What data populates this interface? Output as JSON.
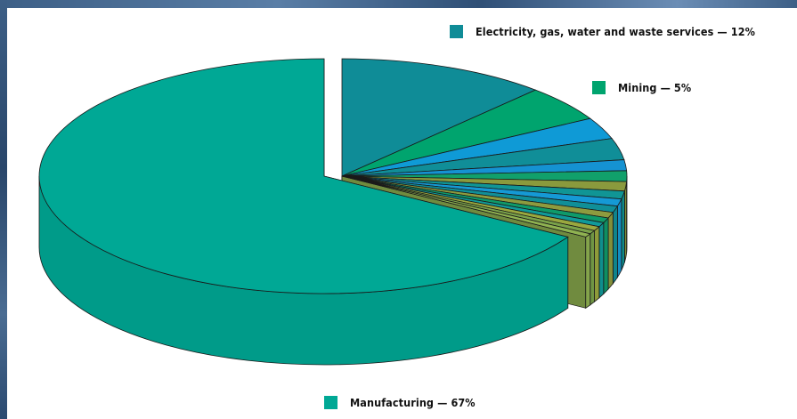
{
  "chart_data": {
    "type": "pie",
    "style": "3d-exploded",
    "slices": [
      {
        "label": "Electricity, gas, water and waste services",
        "value": 12,
        "color": "#0f8c97",
        "labeled": true
      },
      {
        "label": "Mining",
        "value": 5,
        "color": "#00a46e",
        "labeled": true
      },
      {
        "label": "",
        "value": 3,
        "color": "#0f9ad6",
        "labeled": false
      },
      {
        "label": "",
        "value": 3,
        "color": "#108e98",
        "labeled": false
      },
      {
        "label": "",
        "value": 1.5,
        "color": "#1592d2",
        "labeled": false
      },
      {
        "label": "",
        "value": 1.5,
        "color": "#11a06b",
        "labeled": false
      },
      {
        "label": "",
        "value": 1.3,
        "color": "#8a9a3d",
        "labeled": false
      },
      {
        "label": "",
        "value": 1.1,
        "color": "#109595",
        "labeled": false
      },
      {
        "label": "",
        "value": 1.0,
        "color": "#1599d5",
        "labeled": false
      },
      {
        "label": "",
        "value": 0.9,
        "color": "#108f98",
        "labeled": false
      },
      {
        "label": "",
        "value": 0.8,
        "color": "#8d9b3f",
        "labeled": false
      },
      {
        "label": "",
        "value": 0.7,
        "color": "#0f9a6a",
        "labeled": false
      },
      {
        "label": "",
        "value": 0.6,
        "color": "#109a9a",
        "labeled": false
      },
      {
        "label": "",
        "value": 0.6,
        "color": "#9aa83f",
        "labeled": false
      },
      {
        "label": "",
        "value": 0.5,
        "color": "#7aa24a",
        "labeled": false
      },
      {
        "label": "",
        "value": 0.5,
        "color": "#8fb251",
        "labeled": false
      },
      {
        "label": "Manufacturing",
        "value": 67,
        "color": "#00a895",
        "labeled": true
      }
    ],
    "legend": [
      {
        "text": "Electricity, gas, water and waste services — 12%",
        "color": "#0f8c97"
      },
      {
        "text": "Mining — 5%",
        "color": "#00a46e"
      },
      {
        "text": "Manufacturing — 67%",
        "color": "#00a895"
      }
    ]
  }
}
